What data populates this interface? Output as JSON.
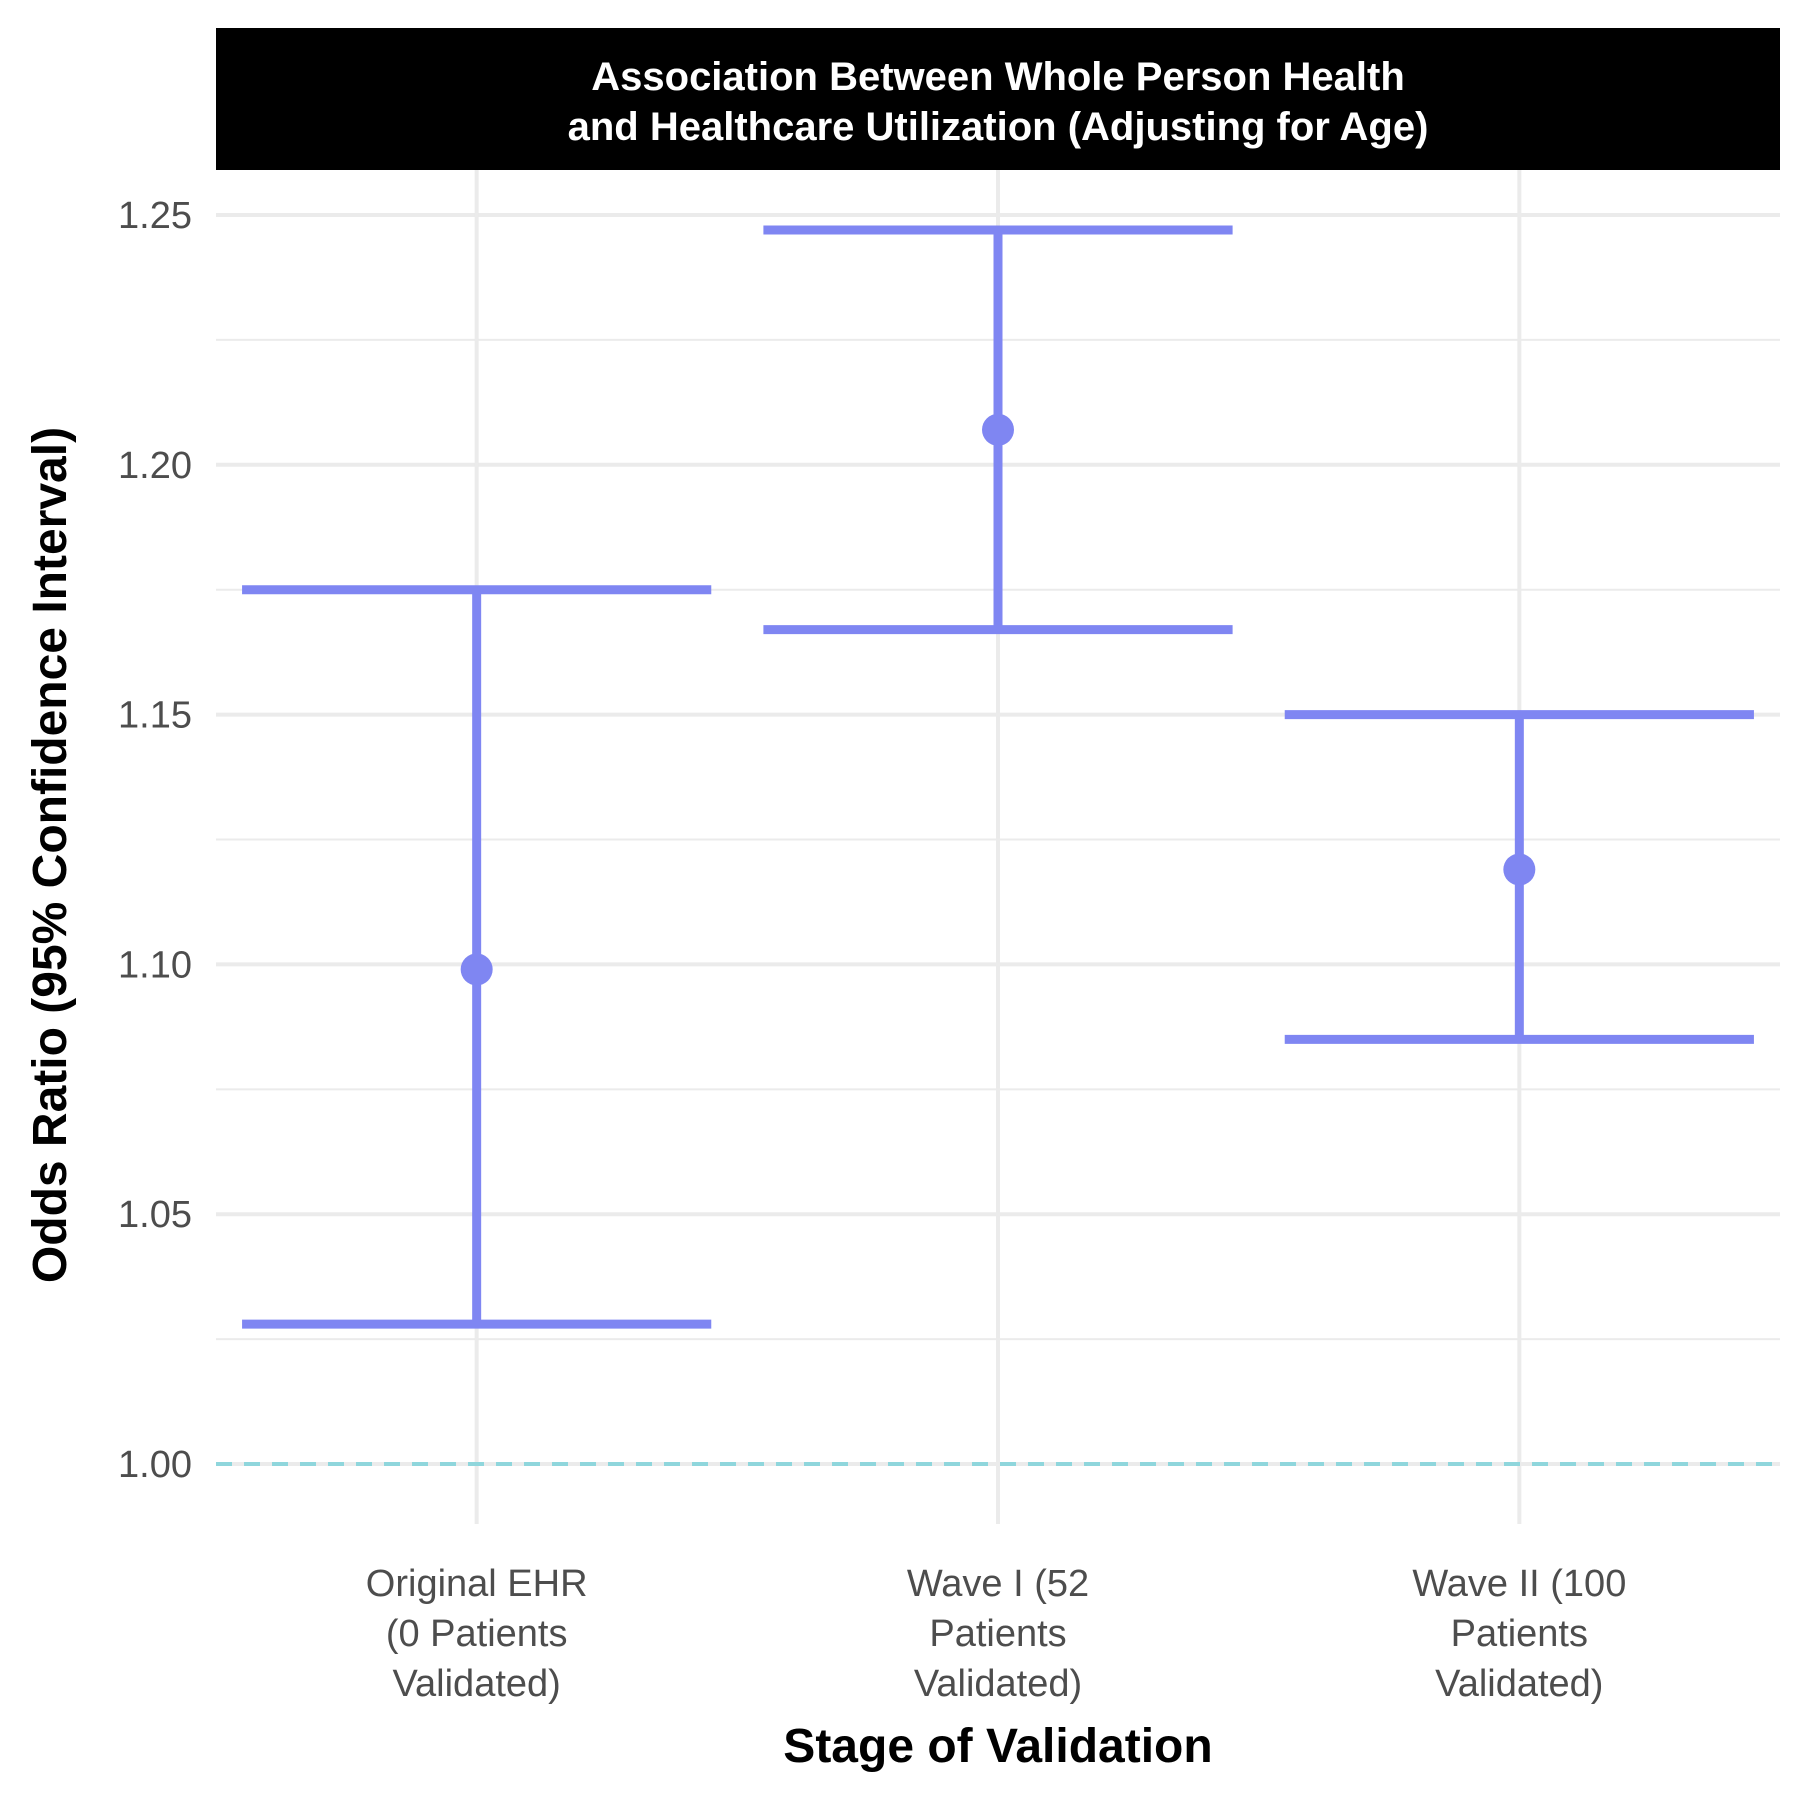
{
  "chart_data": {
    "type": "errorbar",
    "title_lines": [
      "Association Between Whole Person Health",
      "and Healthcare Utilization (Adjusting for Age)"
    ],
    "xlabel": "Stage of Validation",
    "ylabel": "Odds Ratio (95% Confidence Interval)",
    "ylim": [
      0.988,
      1.259
    ],
    "yticks": [
      1.0,
      1.05,
      1.1,
      1.15,
      1.2,
      1.25
    ],
    "ytick_labels": [
      "1.00",
      "1.05",
      "1.10",
      "1.15",
      "1.20",
      "1.25"
    ],
    "reference_line": 1.0,
    "categories": [
      [
        "Original EHR",
        "(0 Patients",
        "Validated)"
      ],
      [
        "Wave I (52",
        "Patients",
        "Validated)"
      ],
      [
        "Wave II (100",
        "Patients",
        "Validated)"
      ]
    ],
    "series": [
      {
        "estimate": [
          1.099,
          1.207,
          1.119
        ],
        "lower": [
          1.028,
          1.167,
          1.085
        ],
        "upper": [
          1.175,
          1.247,
          1.15
        ]
      }
    ],
    "colors": {
      "series": "#7f86f2",
      "reference_line": "#8fd6dc",
      "grid": "#ebebeb",
      "strip_background": "#000000"
    },
    "grid": true,
    "legend": "none"
  }
}
